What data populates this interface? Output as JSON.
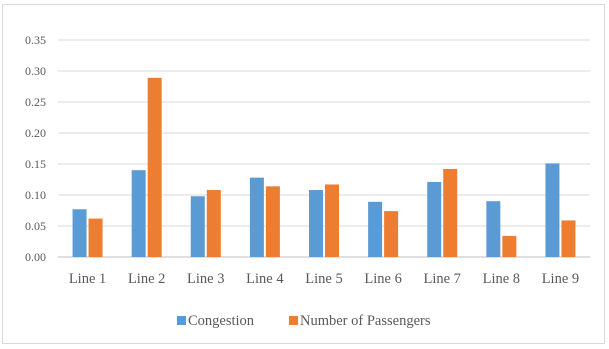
{
  "chart_data": {
    "type": "bar",
    "title": "",
    "xlabel": "",
    "ylabel": "",
    "categories": [
      "Line 1",
      "Line 2",
      "Line 3",
      "Line 4",
      "Line 5",
      "Line 6",
      "Line 7",
      "Line 8",
      "Line 9"
    ],
    "series": [
      {
        "name": "Congestion",
        "color": "#5b9bd5",
        "values": [
          0.077,
          0.14,
          0.098,
          0.128,
          0.108,
          0.089,
          0.121,
          0.09,
          0.151
        ]
      },
      {
        "name": "Number of Passengers",
        "color": "#ed7d31",
        "values": [
          0.062,
          0.289,
          0.108,
          0.114,
          0.117,
          0.074,
          0.142,
          0.034,
          0.059
        ]
      }
    ],
    "ylim": [
      0,
      0.35
    ],
    "yticks": [
      "0.00",
      "0.05",
      "0.10",
      "0.15",
      "0.20",
      "0.25",
      "0.30",
      "0.35"
    ],
    "grid": true,
    "legend_position": "bottom"
  }
}
